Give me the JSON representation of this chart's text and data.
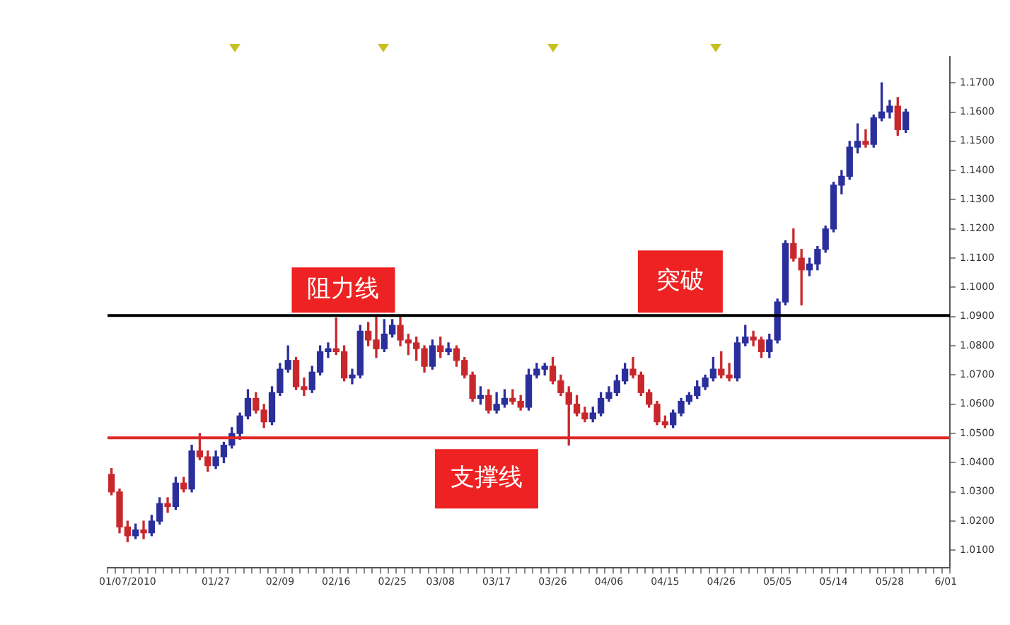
{
  "chart_data": {
    "type": "candlestick",
    "categories": [
      null,
      null,
      "01/07/2010",
      null,
      null,
      null,
      null,
      null,
      null,
      null,
      null,
      null,
      null,
      "01/27",
      null,
      null,
      null,
      null,
      null,
      null,
      null,
      "02/09",
      null,
      null,
      null,
      null,
      null,
      null,
      "02/16",
      null,
      null,
      null,
      null,
      null,
      null,
      "02/25",
      null,
      null,
      null,
      null,
      null,
      "03/08",
      null,
      null,
      null,
      null,
      null,
      null,
      "03/17",
      null,
      null,
      null,
      null,
      null,
      null,
      "03/26",
      null,
      null,
      null,
      null,
      null,
      null,
      "04/06",
      null,
      null,
      null,
      null,
      null,
      null,
      "04/15",
      null,
      null,
      null,
      null,
      null,
      null,
      "04/26",
      null,
      null,
      null,
      null,
      null,
      null,
      "05/05",
      null,
      null,
      null,
      null,
      null,
      null,
      "05/14",
      null,
      null,
      null,
      null,
      null,
      null,
      "05/28",
      null,
      null,
      null,
      null,
      null,
      null,
      "6/01"
    ],
    "ohlc": [
      [
        1.036,
        1.038,
        1.029,
        1.03
      ],
      [
        1.03,
        1.031,
        1.016,
        1.018
      ],
      [
        1.018,
        1.02,
        1.013,
        1.015
      ],
      [
        1.015,
        1.019,
        1.014,
        1.017
      ],
      [
        1.017,
        1.02,
        1.014,
        1.016
      ],
      [
        1.016,
        1.022,
        1.015,
        1.02
      ],
      [
        1.02,
        1.028,
        1.019,
        1.026
      ],
      [
        1.026,
        1.028,
        1.023,
        1.025
      ],
      [
        1.025,
        1.035,
        1.024,
        1.033
      ],
      [
        1.033,
        1.035,
        1.03,
        1.031
      ],
      [
        1.031,
        1.046,
        1.03,
        1.044
      ],
      [
        1.044,
        1.05,
        1.041,
        1.042
      ],
      [
        1.042,
        1.044,
        1.037,
        1.039
      ],
      [
        1.039,
        1.044,
        1.038,
        1.042
      ],
      [
        1.042,
        1.047,
        1.04,
        1.046
      ],
      [
        1.046,
        1.052,
        1.045,
        1.05
      ],
      [
        1.05,
        1.057,
        1.048,
        1.056
      ],
      [
        1.056,
        1.065,
        1.055,
        1.062
      ],
      [
        1.062,
        1.064,
        1.057,
        1.058
      ],
      [
        1.058,
        1.06,
        1.052,
        1.054
      ],
      [
        1.054,
        1.066,
        1.053,
        1.064
      ],
      [
        1.064,
        1.074,
        1.063,
        1.072
      ],
      [
        1.072,
        1.08,
        1.071,
        1.075
      ],
      [
        1.075,
        1.076,
        1.065,
        1.066
      ],
      [
        1.066,
        1.069,
        1.063,
        1.065
      ],
      [
        1.065,
        1.073,
        1.064,
        1.071
      ],
      [
        1.071,
        1.08,
        1.07,
        1.078
      ],
      [
        1.078,
        1.081,
        1.076,
        1.079
      ],
      [
        1.079,
        1.0895,
        1.077,
        1.078
      ],
      [
        1.078,
        1.08,
        1.068,
        1.069
      ],
      [
        1.069,
        1.072,
        1.067,
        1.07
      ],
      [
        1.07,
        1.087,
        1.069,
        1.085
      ],
      [
        1.085,
        1.088,
        1.08,
        1.082
      ],
      [
        1.082,
        1.09,
        1.076,
        1.079
      ],
      [
        1.079,
        1.089,
        1.078,
        1.084
      ],
      [
        1.084,
        1.089,
        1.083,
        1.087
      ],
      [
        1.087,
        1.09,
        1.08,
        1.082
      ],
      [
        1.082,
        1.084,
        1.077,
        1.081
      ],
      [
        1.081,
        1.083,
        1.075,
        1.079
      ],
      [
        1.079,
        1.08,
        1.071,
        1.073
      ],
      [
        1.073,
        1.082,
        1.072,
        1.08
      ],
      [
        1.08,
        1.083,
        1.076,
        1.078
      ],
      [
        1.078,
        1.081,
        1.077,
        1.079
      ],
      [
        1.079,
        1.08,
        1.073,
        1.075
      ],
      [
        1.075,
        1.076,
        1.069,
        1.07
      ],
      [
        1.07,
        1.071,
        1.061,
        1.062
      ],
      [
        1.062,
        1.066,
        1.06,
        1.063
      ],
      [
        1.063,
        1.065,
        1.057,
        1.058
      ],
      [
        1.058,
        1.064,
        1.057,
        1.06
      ],
      [
        1.06,
        1.065,
        1.059,
        1.062
      ],
      [
        1.062,
        1.065,
        1.06,
        1.061
      ],
      [
        1.061,
        1.063,
        1.058,
        1.059
      ],
      [
        1.059,
        1.072,
        1.058,
        1.07
      ],
      [
        1.07,
        1.074,
        1.069,
        1.072
      ],
      [
        1.072,
        1.074,
        1.07,
        1.073
      ],
      [
        1.073,
        1.076,
        1.067,
        1.068
      ],
      [
        1.068,
        1.07,
        1.063,
        1.064
      ],
      [
        1.064,
        1.066,
        1.046,
        1.06
      ],
      [
        1.06,
        1.063,
        1.056,
        1.057
      ],
      [
        1.057,
        1.059,
        1.054,
        1.055
      ],
      [
        1.055,
        1.059,
        1.054,
        1.057
      ],
      [
        1.057,
        1.064,
        1.056,
        1.062
      ],
      [
        1.062,
        1.066,
        1.061,
        1.064
      ],
      [
        1.064,
        1.07,
        1.063,
        1.068
      ],
      [
        1.068,
        1.074,
        1.067,
        1.072
      ],
      [
        1.072,
        1.076,
        1.069,
        1.07
      ],
      [
        1.07,
        1.071,
        1.063,
        1.064
      ],
      [
        1.064,
        1.065,
        1.059,
        1.06
      ],
      [
        1.06,
        1.061,
        1.053,
        1.054
      ],
      [
        1.054,
        1.056,
        1.052,
        1.053
      ],
      [
        1.053,
        1.058,
        1.052,
        1.057
      ],
      [
        1.057,
        1.062,
        1.056,
        1.061
      ],
      [
        1.061,
        1.064,
        1.06,
        1.063
      ],
      [
        1.063,
        1.068,
        1.062,
        1.066
      ],
      [
        1.066,
        1.07,
        1.065,
        1.069
      ],
      [
        1.069,
        1.076,
        1.068,
        1.072
      ],
      [
        1.072,
        1.078,
        1.069,
        1.07
      ],
      [
        1.07,
        1.074,
        1.068,
        1.069
      ],
      [
        1.069,
        1.083,
        1.068,
        1.081
      ],
      [
        1.081,
        1.087,
        1.08,
        1.083
      ],
      [
        1.083,
        1.085,
        1.08,
        1.082
      ],
      [
        1.082,
        1.083,
        1.076,
        1.078
      ],
      [
        1.078,
        1.084,
        1.076,
        1.082
      ],
      [
        1.082,
        1.096,
        1.081,
        1.095
      ],
      [
        1.095,
        1.116,
        1.094,
        1.115
      ],
      [
        1.115,
        1.12,
        1.109,
        1.11
      ],
      [
        1.11,
        1.113,
        1.094,
        1.106
      ],
      [
        1.106,
        1.11,
        1.104,
        1.108
      ],
      [
        1.108,
        1.114,
        1.106,
        1.113
      ],
      [
        1.113,
        1.121,
        1.112,
        1.12
      ],
      [
        1.12,
        1.136,
        1.119,
        1.135
      ],
      [
        1.135,
        1.14,
        1.132,
        1.138
      ],
      [
        1.138,
        1.15,
        1.137,
        1.148
      ],
      [
        1.148,
        1.156,
        1.146,
        1.15
      ],
      [
        1.15,
        1.154,
        1.148,
        1.149
      ],
      [
        1.149,
        1.159,
        1.148,
        1.158
      ],
      [
        1.158,
        1.17,
        1.157,
        1.16
      ],
      [
        1.16,
        1.164,
        1.158,
        1.162
      ],
      [
        1.162,
        1.165,
        1.152,
        1.154
      ],
      [
        1.154,
        1.161,
        1.153,
        1.16
      ],
      null,
      null,
      null,
      null,
      null
    ],
    "colors": [
      "#c8282c",
      "#c8282c",
      "#c8282c",
      "#2b2f9c",
      "#c8282c",
      "#2b2f9c",
      "#2b2f9c",
      "#c8282c",
      "#2b2f9c",
      "#c8282c",
      "#2b2f9c",
      "#c8282c",
      "#c8282c",
      "#2b2f9c",
      "#2b2f9c",
      "#2b2f9c",
      "#2b2f9c",
      "#2b2f9c",
      "#c8282c",
      "#c8282c",
      "#2b2f9c",
      "#2b2f9c",
      "#2b2f9c",
      "#c8282c",
      "#c8282c",
      "#2b2f9c",
      "#2b2f9c",
      "#2b2f9c",
      "#c8282c",
      "#c8282c",
      "#2b2f9c",
      "#2b2f9c",
      "#c8282c",
      "#c8282c",
      "#2b2f9c",
      "#2b2f9c",
      "#c8282c",
      "#c8282c",
      "#c8282c",
      "#c8282c",
      "#2b2f9c",
      "#c8282c",
      "#2b2f9c",
      "#c8282c",
      "#c8282c",
      "#c8282c",
      "#2b2f9c",
      "#c8282c",
      "#2b2f9c",
      "#2b2f9c",
      "#c8282c",
      "#c8282c",
      "#2b2f9c",
      "#2b2f9c",
      "#2b2f9c",
      "#c8282c",
      "#c8282c",
      "#c8282c",
      "#c8282c",
      "#c8282c",
      "#2b2f9c",
      "#2b2f9c",
      "#2b2f9c",
      "#2b2f9c",
      "#2b2f9c",
      "#c8282c",
      "#c8282c",
      "#c8282c",
      "#c8282c",
      "#c8282c",
      "#2b2f9c",
      "#2b2f9c",
      "#2b2f9c",
      "#2b2f9c",
      "#2b2f9c",
      "#2b2f9c",
      "#c8282c",
      "#c8282c",
      "#2b2f9c",
      "#2b2f9c",
      "#c8282c",
      "#c8282c",
      "#2b2f9c",
      "#2b2f9c",
      "#2b2f9c",
      "#c8282c",
      "#c8282c",
      "#2b2f9c",
      "#2b2f9c",
      "#2b2f9c",
      "#2b2f9c",
      "#2b2f9c",
      "#2b2f9c",
      "#2b2f9c",
      "#c8282c",
      "#2b2f9c",
      "#2b2f9c",
      "#2b2f9c",
      "#c8282c",
      "#2b2f9c",
      null,
      null,
      null,
      null,
      null
    ],
    "ylim": [
      1.004,
      1.179
    ],
    "yticks": [
      {
        "value": 1.01,
        "label": "1.0100"
      },
      {
        "value": 1.02,
        "label": "1.0200"
      },
      {
        "value": 1.03,
        "label": "1.0300"
      },
      {
        "value": 1.04,
        "label": "1.0400"
      },
      {
        "value": 1.05,
        "label": "1.0500"
      },
      {
        "value": 1.06,
        "label": "1.0600"
      },
      {
        "value": 1.07,
        "label": "1.0700"
      },
      {
        "value": 1.08,
        "label": "1.0800"
      },
      {
        "value": 1.09,
        "label": "1.0900"
      },
      {
        "value": 1.1,
        "label": "1.1000"
      },
      {
        "value": 1.11,
        "label": "1.1100"
      },
      {
        "value": 1.12,
        "label": "1.1200"
      },
      {
        "value": 1.13,
        "label": "1.1300"
      },
      {
        "value": 1.14,
        "label": "1.1400"
      },
      {
        "value": 1.15,
        "label": "1.1500"
      },
      {
        "value": 1.16,
        "label": "1.1600"
      },
      {
        "value": 1.17,
        "label": "1.1700"
      }
    ],
    "ref_lines": [
      {
        "axis": "y",
        "value": 1.0904,
        "label": "阻力线",
        "color": "#000000"
      },
      {
        "axis": "y",
        "value": 1.0485,
        "label": "支撑线",
        "color": "#e02828"
      }
    ],
    "annotations": [
      "突破"
    ],
    "grid": false,
    "legend": false
  }
}
